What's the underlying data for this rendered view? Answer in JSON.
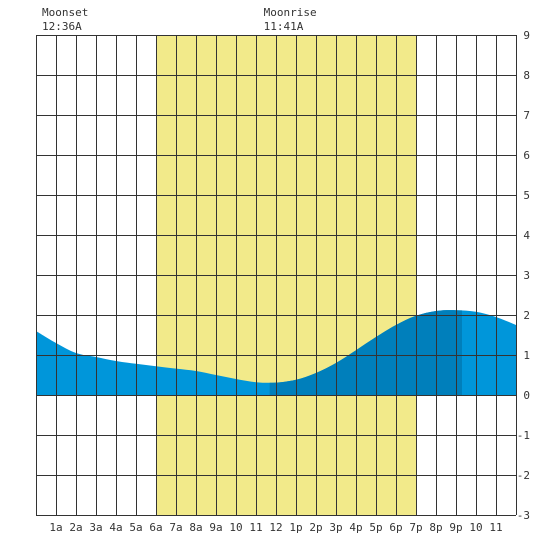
{
  "moon_events": [
    {
      "label": "Moonset",
      "time": "12:36A",
      "hour": 0.6
    },
    {
      "label": "Moonrise",
      "time": "11:41A",
      "hour": 11.683
    }
  ],
  "chart_data": {
    "type": "area",
    "title": "",
    "xlabel": "",
    "ylabel": "",
    "xlim": [
      0,
      24
    ],
    "ylim": [
      -3,
      9
    ],
    "grid": true,
    "daylight": {
      "start_hour": 6.0,
      "end_hour": 19.0
    },
    "x_tick_labels": [
      "1a",
      "2a",
      "3a",
      "4a",
      "5a",
      "6a",
      "7a",
      "8a",
      "9a",
      "10",
      "11",
      "12",
      "1p",
      "2p",
      "3p",
      "4p",
      "5p",
      "6p",
      "7p",
      "8p",
      "9p",
      "10",
      "11"
    ],
    "y_tick_labels": [
      "9",
      "8",
      "7",
      "6",
      "5",
      "4",
      "3",
      "2",
      "1",
      "0",
      "-1",
      "-2",
      "-3"
    ],
    "series": [
      {
        "x": [
          0,
          1,
          2,
          3,
          4,
          5,
          6,
          7,
          8,
          9,
          10,
          11,
          12,
          13,
          14,
          15,
          16,
          17,
          18,
          19,
          20,
          21,
          22,
          23,
          24
        ],
        "values": [
          1.6,
          1.3,
          1.05,
          0.95,
          0.85,
          0.78,
          0.72,
          0.66,
          0.6,
          0.5,
          0.4,
          0.32,
          0.31,
          0.38,
          0.55,
          0.8,
          1.12,
          1.45,
          1.75,
          1.98,
          2.1,
          2.12,
          2.08,
          1.95,
          1.75
        ]
      }
    ],
    "highlight_intervals": [
      {
        "start_hour": 11.683,
        "end_hour": 21.3
      }
    ],
    "colors": {
      "daylight": "#f2ea8a",
      "tide": "#0096da",
      "tide_moon": "#007fbb",
      "grid": "#333333",
      "background": "#ffffff"
    }
  }
}
